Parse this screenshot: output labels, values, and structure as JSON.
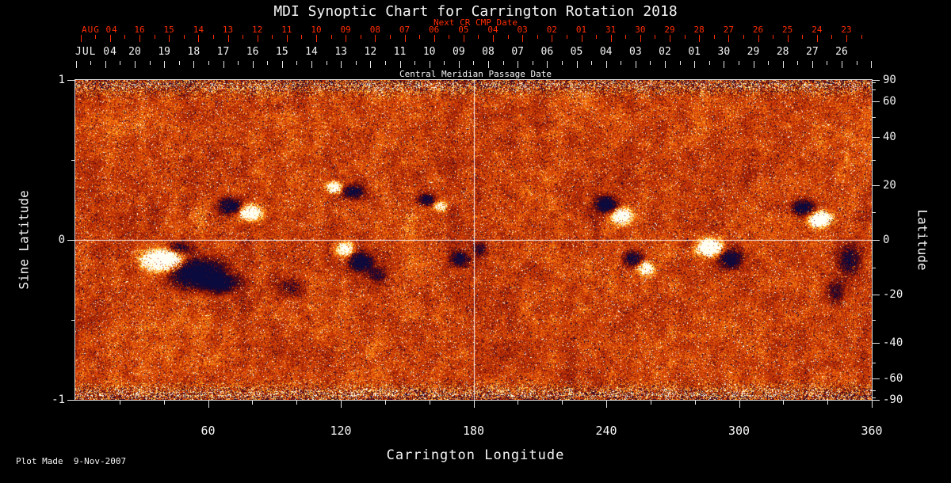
{
  "chart_data": {
    "type": "heatmap",
    "title": "MDI Synoptic Chart for Carrington Rotation 2018",
    "footer": "Plot Made  9-Nov-2007",
    "colors": {
      "background": "#000000",
      "axis_text": "#f5f5f5",
      "next_cr_axis": "#ff2d00",
      "crosshair": "#ffffff"
    },
    "axes": {
      "next_cr": {
        "label": "Next CR CMP Date",
        "month": "AUG 04",
        "days": [
          "16",
          "15",
          "14",
          "13",
          "12",
          "11",
          "10",
          "09",
          "08",
          "07",
          "06",
          "05",
          "04",
          "03",
          "02",
          "01",
          "31",
          "30",
          "29",
          "28",
          "27",
          "26",
          "25",
          "24",
          "23"
        ]
      },
      "cmp": {
        "label": "Central Meridian Passage Date",
        "month": "JUL 04",
        "days": [
          "20",
          "19",
          "18",
          "17",
          "16",
          "15",
          "14",
          "13",
          "12",
          "11",
          "10",
          "09",
          "08",
          "07",
          "06",
          "05",
          "04",
          "03",
          "02",
          "01",
          "30",
          "29",
          "28",
          "27",
          "26"
        ]
      },
      "longitude": {
        "label": "Carrington Longitude",
        "range": [
          0,
          360
        ],
        "major_ticks": [
          60,
          120,
          180,
          240,
          300,
          360
        ],
        "minor_step": 20
      },
      "sine_latitude": {
        "label": "Sine Latitude",
        "range": [
          -1,
          1
        ],
        "ticks": [
          1,
          0,
          -1
        ],
        "minor_ticks": [
          0.5,
          -0.5
        ]
      },
      "latitude": {
        "label": "Latitude",
        "ticks": [
          90,
          60,
          40,
          20,
          0,
          -20,
          -40,
          -60,
          -90
        ],
        "minor_ticks": [
          80,
          70,
          50,
          30,
          10,
          -10,
          -30,
          -50,
          -70,
          -80
        ]
      }
    },
    "crosshairs": {
      "longitude": 180,
      "sine_latitude": 0
    },
    "colormap": [
      [
        -1.0,
        10,
        10,
        62
      ],
      [
        -0.7,
        24,
        6,
        50
      ],
      [
        -0.4,
        64,
        8,
        30
      ],
      [
        -0.15,
        104,
        12,
        12
      ],
      [
        0.0,
        144,
        26,
        6
      ],
      [
        0.2,
        188,
        46,
        6
      ],
      [
        0.4,
        224,
        78,
        8
      ],
      [
        0.6,
        250,
        124,
        16
      ],
      [
        0.75,
        255,
        184,
        46
      ],
      [
        0.88,
        255,
        238,
        130
      ],
      [
        1.0,
        255,
        255,
        246
      ]
    ],
    "noise": {
      "seed": 20181107,
      "base": 0.3,
      "grain": 0.4,
      "bright_speck": 0.035,
      "dark_speck": 0.04,
      "mottle_fine": 0.28,
      "mottle_broad": 0.22,
      "polar_start": 0.86,
      "polar_gain": 2.4,
      "day_banding": 0.03
    },
    "active_regions": [
      {
        "lon": 40,
        "slat": -0.13,
        "rlon": 8,
        "rslat": 0.06,
        "amp": 2.6
      },
      {
        "lon": 55,
        "slat": -0.21,
        "rlon": 11,
        "rslat": 0.08,
        "amp": -2.6
      },
      {
        "lon": 66,
        "slat": -0.27,
        "rlon": 7,
        "rslat": 0.05,
        "amp": -1.6
      },
      {
        "lon": 47,
        "slat": -0.05,
        "rlon": 5,
        "rslat": 0.04,
        "amp": -1.2
      },
      {
        "lon": 70,
        "slat": 0.21,
        "rlon": 4.5,
        "rslat": 0.045,
        "amp": -2.0
      },
      {
        "lon": 79,
        "slat": 0.17,
        "rlon": 4.5,
        "rslat": 0.045,
        "amp": 2.0
      },
      {
        "lon": 117,
        "slat": 0.33,
        "rlon": 3.5,
        "rslat": 0.035,
        "amp": 1.6
      },
      {
        "lon": 126,
        "slat": 0.3,
        "rlon": 4.5,
        "rslat": 0.04,
        "amp": -1.7
      },
      {
        "lon": 122,
        "slat": -0.06,
        "rlon": 3.5,
        "rslat": 0.04,
        "amp": 1.7
      },
      {
        "lon": 129,
        "slat": -0.14,
        "rlon": 5,
        "rslat": 0.055,
        "amp": -1.9
      },
      {
        "lon": 137,
        "slat": -0.22,
        "rlon": 4,
        "rslat": 0.05,
        "amp": -1.0
      },
      {
        "lon": 159,
        "slat": 0.25,
        "rlon": 3.5,
        "rslat": 0.035,
        "amp": -1.5
      },
      {
        "lon": 165,
        "slat": 0.21,
        "rlon": 3,
        "rslat": 0.03,
        "amp": 1.1
      },
      {
        "lon": 174,
        "slat": -0.12,
        "rlon": 4,
        "rslat": 0.045,
        "amp": -1.6
      },
      {
        "lon": 183,
        "slat": -0.06,
        "rlon": 3,
        "rslat": 0.04,
        "amp": -1.0
      },
      {
        "lon": 240,
        "slat": 0.22,
        "rlon": 4.5,
        "rslat": 0.045,
        "amp": -2.0
      },
      {
        "lon": 247,
        "slat": 0.15,
        "rlon": 4,
        "rslat": 0.045,
        "amp": 2.0
      },
      {
        "lon": 252,
        "slat": -0.12,
        "rlon": 4,
        "rslat": 0.045,
        "amp": -1.7
      },
      {
        "lon": 258,
        "slat": -0.18,
        "rlon": 3.5,
        "rslat": 0.04,
        "amp": 1.4
      },
      {
        "lon": 287,
        "slat": -0.05,
        "rlon": 5.5,
        "rslat": 0.05,
        "amp": 2.1
      },
      {
        "lon": 296,
        "slat": -0.12,
        "rlon": 4.5,
        "rslat": 0.055,
        "amp": -1.9
      },
      {
        "lon": 329,
        "slat": 0.2,
        "rlon": 4.5,
        "rslat": 0.045,
        "amp": -1.9
      },
      {
        "lon": 337,
        "slat": 0.13,
        "rlon": 4.5,
        "rslat": 0.045,
        "amp": 2.2
      },
      {
        "lon": 350,
        "slat": -0.13,
        "rlon": 5,
        "rslat": 0.09,
        "amp": -1.3
      },
      {
        "lon": 344,
        "slat": -0.33,
        "rlon": 4,
        "rslat": 0.07,
        "amp": -0.9
      },
      {
        "lon": 97,
        "slat": -0.3,
        "rlon": 6,
        "rslat": 0.06,
        "amp": -0.8
      }
    ]
  }
}
